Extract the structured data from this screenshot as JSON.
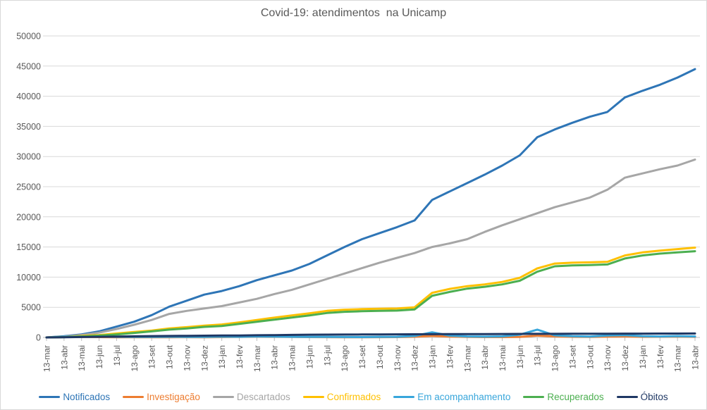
{
  "chart_data": {
    "type": "line",
    "title": "Covid-19: atendimentos  na Unicamp",
    "legend_position": "bottom",
    "grid": true,
    "x_axis": {
      "tick_labels": [
        "13-mar",
        "13-abr",
        "13-mai",
        "13-jun",
        "13-jul",
        "13-ago",
        "13-set",
        "13-out",
        "13-nov",
        "13-dez",
        "13-jan",
        "13-fev",
        "13-mar",
        "13-abr",
        "13-mai",
        "13-jun",
        "13-jul",
        "13-ago",
        "13-set",
        "13-out",
        "13-nov",
        "13-dez",
        "13-jan",
        "13-fev",
        "13-mar",
        "13-abr",
        "13-mai",
        "13-jun",
        "13-jul",
        "13-ago",
        "13-set",
        "13-out",
        "13-nov",
        "13-dez",
        "13-jan",
        "13-fev",
        "13-mar",
        "13-abr"
      ]
    },
    "y_axis": {
      "min": 0,
      "max": 50000,
      "step": 5000,
      "tick_labels": [
        "0",
        "5000",
        "10000",
        "15000",
        "20000",
        "25000",
        "30000",
        "35000",
        "40000",
        "45000",
        "50000"
      ]
    },
    "colors": {
      "grid": "#D9D9D9",
      "axis_ticks": "#BFBFBF",
      "text": "#595959",
      "background": "#FFFFFF"
    },
    "series": [
      {
        "name": "Notificados",
        "color": "#2E75B6",
        "values": [
          0,
          200,
          500,
          1000,
          1800,
          2600,
          3700,
          5100,
          6100,
          7100,
          7700,
          8500,
          9500,
          10300,
          11100,
          12200,
          13600,
          15000,
          16300,
          17300,
          18300,
          19400,
          22800,
          24200,
          25600,
          27000,
          28500,
          30200,
          33200,
          34500,
          35600,
          36600,
          37400,
          39800,
          40900,
          41900,
          43100,
          44500
        ]
      },
      {
        "name": "Investigação",
        "color": "#ED7D31",
        "values": [
          0,
          60,
          80,
          60,
          40,
          30,
          30,
          40,
          50,
          40,
          60,
          80,
          120,
          100,
          80,
          60,
          50,
          40,
          40,
          50,
          60,
          120,
          260,
          140,
          80,
          60,
          60,
          90,
          300,
          180,
          100,
          80,
          130,
          160,
          110,
          120,
          150,
          110
        ]
      },
      {
        "name": "Descartados",
        "color": "#A6A6A6",
        "values": [
          0,
          150,
          400,
          800,
          1400,
          2100,
          2900,
          3900,
          4400,
          4800,
          5200,
          5800,
          6400,
          7200,
          7900,
          8800,
          9700,
          10600,
          11500,
          12400,
          13200,
          14000,
          15000,
          15600,
          16300,
          17500,
          18600,
          19600,
          20600,
          21600,
          22400,
          23200,
          24500,
          26500,
          27200,
          27900,
          28500,
          29500
        ]
      },
      {
        "name": "Confirmados",
        "color": "#FFC000",
        "values": [
          0,
          100,
          250,
          400,
          650,
          900,
          1150,
          1500,
          1700,
          1950,
          2150,
          2500,
          2900,
          3300,
          3650,
          4000,
          4400,
          4600,
          4700,
          4750,
          4800,
          5000,
          7400,
          8050,
          8500,
          8800,
          9200,
          9900,
          11450,
          12250,
          12400,
          12450,
          12550,
          13600,
          14100,
          14400,
          14650,
          14900
        ]
      },
      {
        "name": "Em acompanhamento",
        "color": "#38A6DB",
        "values": [
          0,
          120,
          160,
          130,
          100,
          80,
          80,
          100,
          90,
          80,
          130,
          110,
          160,
          130,
          100,
          90,
          80,
          70,
          60,
          80,
          110,
          250,
          850,
          300,
          160,
          130,
          180,
          450,
          1300,
          350,
          200,
          150,
          320,
          380,
          200,
          160,
          220,
          160
        ]
      },
      {
        "name": "Recuperados",
        "color": "#4CAF50",
        "values": [
          0,
          50,
          150,
          300,
          500,
          750,
          1000,
          1300,
          1500,
          1750,
          1900,
          2250,
          2600,
          2950,
          3300,
          3650,
          4050,
          4250,
          4350,
          4400,
          4450,
          4650,
          6900,
          7550,
          8100,
          8400,
          8800,
          9400,
          10900,
          11800,
          11950,
          12000,
          12100,
          13100,
          13600,
          13900,
          14100,
          14300
        ]
      },
      {
        "name": "Óbitos",
        "color": "#1F3864",
        "values": [
          0,
          30,
          70,
          110,
          150,
          190,
          220,
          250,
          270,
          290,
          310,
          330,
          360,
          390,
          420,
          450,
          470,
          480,
          490,
          500,
          510,
          520,
          540,
          550,
          560,
          565,
          570,
          580,
          590,
          600,
          605,
          610,
          615,
          625,
          630,
          640,
          645,
          650
        ]
      }
    ]
  }
}
